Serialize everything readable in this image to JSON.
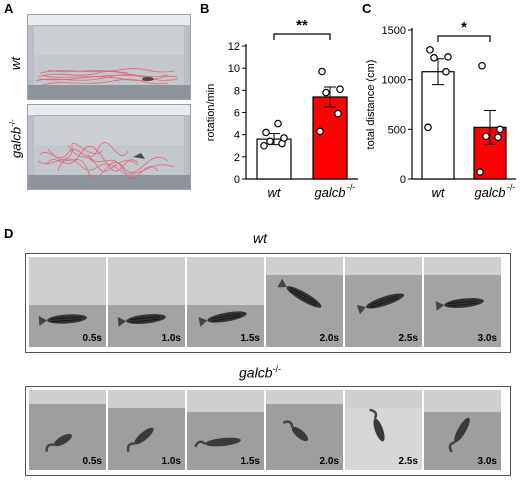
{
  "panels": {
    "A": {
      "letter": "A",
      "top_label": "wt",
      "bottom_label": "galcb",
      "bottom_label_sup": "-/-"
    },
    "B": {
      "letter": "B"
    },
    "C": {
      "letter": "C"
    },
    "D": {
      "letter": "D",
      "wt_title": "wt",
      "mut_title": "galcb",
      "mut_title_sup": "-/-",
      "wt_frames": [
        "0.5s",
        "1.0s",
        "1.5s",
        "2.0s",
        "2.5s",
        "3.0s"
      ],
      "mut_frames": [
        "0.5s",
        "1.0s",
        "1.5s",
        "2.0s",
        "2.5s",
        "3.0s"
      ]
    }
  },
  "chart_data": [
    {
      "type": "bar",
      "ylabel": "rotation/min",
      "ylim": [
        0,
        12
      ],
      "yticks": [
        0,
        2,
        4,
        6,
        8,
        10,
        12
      ],
      "categories": [
        "wt",
        "galcb"
      ],
      "category_sup": [
        "",
        "-/-"
      ],
      "bar_colors": [
        "#ffffff",
        "#ff0000"
      ],
      "values": [
        3.6,
        7.4
      ],
      "errors": [
        0.5,
        0.9
      ],
      "points": [
        [
          3.0,
          3.2,
          3.4,
          3.7,
          4.2,
          5.0
        ],
        [
          4.3,
          5.9,
          7.8,
          8.1,
          9.7
        ]
      ],
      "significance": "**"
    },
    {
      "type": "bar",
      "ylabel": "total distance (cm)",
      "ylim": [
        0,
        1500
      ],
      "yticks": [
        0,
        500,
        1000,
        1500
      ],
      "categories": [
        "wt",
        "galcb"
      ],
      "category_sup": [
        "",
        "-/-"
      ],
      "bar_colors": [
        "#ffffff",
        "#ff0000"
      ],
      "values": [
        1080,
        520
      ],
      "errors": [
        130,
        170
      ],
      "points": [
        [
          520,
          1080,
          1220,
          1230,
          1300
        ],
        [
          70,
          420,
          430,
          500,
          1140
        ]
      ],
      "significance": "*"
    }
  ]
}
